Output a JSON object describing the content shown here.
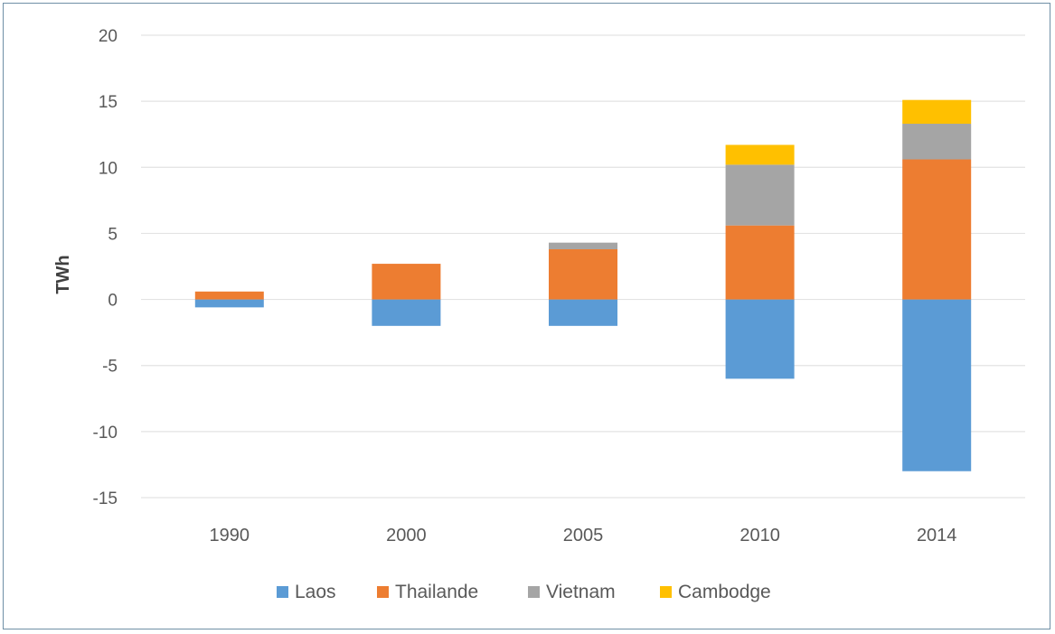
{
  "chart_data": {
    "type": "bar",
    "stacked": true,
    "title": "",
    "xlabel": "",
    "ylabel": "TWh",
    "ylim": [
      -15,
      20
    ],
    "yticks": [
      20,
      15,
      10,
      5,
      0,
      -5,
      -10,
      -15
    ],
    "grid": true,
    "legend_position": "bottom",
    "categories": [
      "1990",
      "2000",
      "2005",
      "2010",
      "2014"
    ],
    "series": [
      {
        "name": "Laos",
        "color": "#5b9bd5",
        "values": [
          -0.6,
          -2.0,
          -2.0,
          -6.0,
          -13.0
        ]
      },
      {
        "name": "Thailande",
        "color": "#ed7d31",
        "values": [
          0.6,
          2.7,
          3.8,
          5.6,
          10.6
        ]
      },
      {
        "name": "Vietnam",
        "color": "#a5a5a5",
        "values": [
          0.0,
          0.0,
          0.5,
          4.6,
          2.7
        ]
      },
      {
        "name": "Cambodge",
        "color": "#ffc000",
        "values": [
          0.0,
          0.0,
          0.0,
          1.5,
          1.8
        ]
      }
    ]
  }
}
